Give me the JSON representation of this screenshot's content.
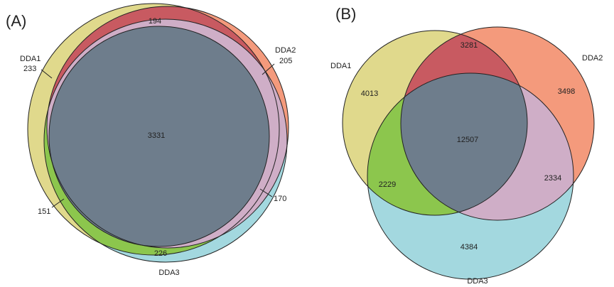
{
  "colors": {
    "dda1_only": "#e0d98c",
    "dda2_only": "#f49a7c",
    "dda3_only": "#a3d8df",
    "dda1_dda2": "#c85a61",
    "dda1_dda3": "#8cc64d",
    "dda2_dda3": "#cfaec7",
    "all_three": "#6e7d8c"
  },
  "panel_a": {
    "label": "(A)",
    "set_labels": {
      "dda1": "DDA1",
      "dda2": "DDA2",
      "dda3": "DDA3"
    },
    "counts": {
      "dda1_only": "233",
      "dda2_only": "205",
      "dda3_only": "226",
      "dda1_dda2": "194",
      "dda1_dda3": "151",
      "dda2_dda3": "170",
      "all_three": "3331"
    }
  },
  "panel_b": {
    "label": "(B)",
    "set_labels": {
      "dda1": "DDA1",
      "dda2": "DDA2",
      "dda3": "DDA3"
    },
    "counts": {
      "dda1_only": "4013",
      "dda2_only": "3498",
      "dda3_only": "4384",
      "dda1_dda2": "3281",
      "dda1_dda3": "2229",
      "dda2_dda3": "2334",
      "all_three": "12507"
    }
  }
}
